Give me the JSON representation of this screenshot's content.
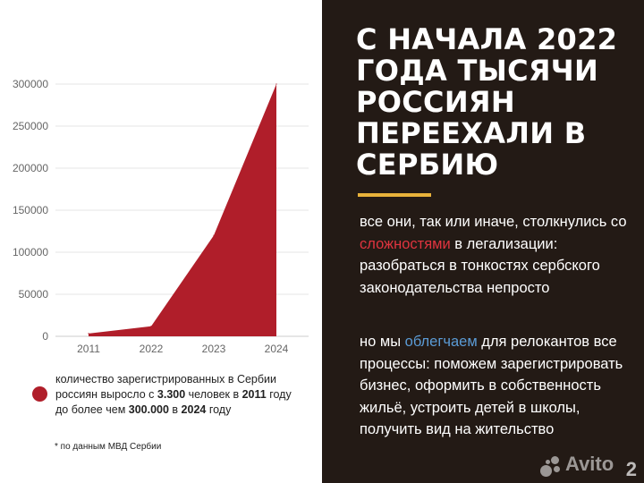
{
  "chart_data": {
    "type": "area",
    "categories": [
      "2011",
      "2022",
      "2023",
      "2024"
    ],
    "values": [
      3300,
      12000,
      120000,
      300000
    ],
    "yticks": [
      "0",
      "50000",
      "100000",
      "150000",
      "200000",
      "250000",
      "300000"
    ],
    "ylim": [
      0,
      300000
    ],
    "grid": true,
    "color": "#b01e2a",
    "legend": {
      "marker_color": "#b01e2a",
      "text_pre": "количество зарегистрированных в Сербии россиян выросло с ",
      "from_value": "3.300",
      "text_mid1": " человек в ",
      "from_year": "2011",
      "text_mid2": " году до более чем ",
      "to_value": "300.000",
      "text_mid3": " в ",
      "to_year": "2024",
      "text_post": " году"
    },
    "footnote": "* по данным МВД Сербии"
  },
  "headline": "С НАЧАЛА 2022 ГОДА ТЫСЯЧИ РОССИЯН ПЕРЕЕХАЛИ В СЕРБИЮ",
  "paragraph1": {
    "pre": "все они, так или иначе, столкнулись со ",
    "highlight": "сложностями",
    "post": " в легализации: разобраться в тонкостях сербского законодательства непросто"
  },
  "paragraph2": {
    "pre": "но мы ",
    "highlight": "облегчаем",
    "post": " для релокантов все процессы: поможем зарегистрировать бизнес, оформить в собственность жильё, устроить детей в школы, получить вид на жительство"
  },
  "watermark": {
    "brand": "Avito",
    "number": "2",
    "icon": "avito-dots-icon"
  },
  "colors": {
    "right_bg": "#231a15",
    "accent_bar": "#e8b23a",
    "highlight_red": "#e0343f",
    "highlight_blue": "#5b9bd5"
  }
}
